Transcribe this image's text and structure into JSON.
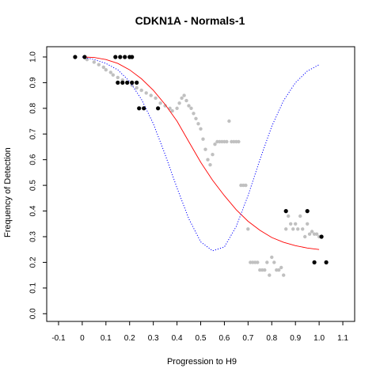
{
  "chart_data": {
    "type": "scatter",
    "title": "CDKN1A - Normals-1",
    "xlabel": "Progression to H9",
    "ylabel": "Frequency of Detection",
    "xlim": [
      -0.15,
      1.15
    ],
    "ylim": [
      -0.03,
      1.04
    ],
    "x_ticks": [
      "-0.1",
      "0",
      "0.1",
      "0.2",
      "0.3",
      "0.4",
      "0.5",
      "0.6",
      "0.7",
      "0.8",
      "0.9",
      "1.0",
      "1.1"
    ],
    "y_ticks": [
      "0.0",
      "0.1",
      "0.2",
      "0.3",
      "0.4",
      "0.5",
      "0.6",
      "0.7",
      "0.8",
      "0.9",
      "1.0"
    ],
    "grid": false,
    "series": [
      {
        "kind": "points",
        "color": "#000000",
        "points": [
          [
            -0.03,
            1.0
          ],
          [
            0.01,
            1.0
          ],
          [
            0.14,
            1.0
          ],
          [
            0.16,
            1.0
          ],
          [
            0.18,
            1.0
          ],
          [
            0.2,
            1.0
          ],
          [
            0.21,
            1.0
          ],
          [
            0.15,
            0.9
          ],
          [
            0.17,
            0.9
          ],
          [
            0.19,
            0.9
          ],
          [
            0.21,
            0.9
          ],
          [
            0.23,
            0.9
          ],
          [
            0.24,
            0.8
          ],
          [
            0.26,
            0.8
          ],
          [
            0.32,
            0.8
          ],
          [
            0.86,
            0.4
          ],
          [
            0.95,
            0.4
          ],
          [
            1.01,
            0.3
          ],
          [
            0.98,
            0.2
          ],
          [
            1.03,
            0.2
          ]
        ]
      },
      {
        "kind": "points",
        "color": "#c0c0c0",
        "points": [
          [
            0.02,
            0.99
          ],
          [
            0.05,
            0.98
          ],
          [
            0.07,
            0.97
          ],
          [
            0.09,
            0.96
          ],
          [
            0.1,
            0.95
          ],
          [
            0.12,
            0.94
          ],
          [
            0.13,
            0.93
          ],
          [
            0.15,
            0.92
          ],
          [
            0.17,
            0.91
          ],
          [
            0.19,
            0.9
          ],
          [
            0.21,
            0.89
          ],
          [
            0.23,
            0.88
          ],
          [
            0.25,
            0.87
          ],
          [
            0.27,
            0.86
          ],
          [
            0.29,
            0.85
          ],
          [
            0.31,
            0.84
          ],
          [
            0.33,
            0.82
          ],
          [
            0.35,
            0.81
          ],
          [
            0.37,
            0.8
          ],
          [
            0.38,
            0.79
          ],
          [
            0.4,
            0.8
          ],
          [
            0.41,
            0.82
          ],
          [
            0.42,
            0.84
          ],
          [
            0.43,
            0.85
          ],
          [
            0.44,
            0.83
          ],
          [
            0.45,
            0.81
          ],
          [
            0.46,
            0.8
          ],
          [
            0.47,
            0.78
          ],
          [
            0.48,
            0.76
          ],
          [
            0.49,
            0.74
          ],
          [
            0.5,
            0.72
          ],
          [
            0.51,
            0.68
          ],
          [
            0.52,
            0.64
          ],
          [
            0.53,
            0.6
          ],
          [
            0.54,
            0.58
          ],
          [
            0.55,
            0.62
          ],
          [
            0.56,
            0.66
          ],
          [
            0.57,
            0.67
          ],
          [
            0.58,
            0.67
          ],
          [
            0.59,
            0.67
          ],
          [
            0.6,
            0.67
          ],
          [
            0.61,
            0.67
          ],
          [
            0.62,
            0.75
          ],
          [
            0.63,
            0.67
          ],
          [
            0.64,
            0.67
          ],
          [
            0.65,
            0.67
          ],
          [
            0.66,
            0.67
          ],
          [
            0.67,
            0.5
          ],
          [
            0.68,
            0.5
          ],
          [
            0.69,
            0.5
          ],
          [
            0.7,
            0.33
          ],
          [
            0.71,
            0.2
          ],
          [
            0.72,
            0.2
          ],
          [
            0.73,
            0.2
          ],
          [
            0.74,
            0.2
          ],
          [
            0.75,
            0.17
          ],
          [
            0.76,
            0.17
          ],
          [
            0.77,
            0.17
          ],
          [
            0.78,
            0.2
          ],
          [
            0.79,
            0.15
          ],
          [
            0.8,
            0.22
          ],
          [
            0.81,
            0.2
          ],
          [
            0.82,
            0.17
          ],
          [
            0.83,
            0.17
          ],
          [
            0.84,
            0.18
          ],
          [
            0.85,
            0.15
          ],
          [
            0.86,
            0.33
          ],
          [
            0.87,
            0.38
          ],
          [
            0.88,
            0.35
          ],
          [
            0.89,
            0.33
          ],
          [
            0.9,
            0.35
          ],
          [
            0.91,
            0.33
          ],
          [
            0.92,
            0.38
          ],
          [
            0.93,
            0.33
          ],
          [
            0.94,
            0.3
          ],
          [
            0.95,
            0.35
          ],
          [
            0.96,
            0.31
          ],
          [
            0.97,
            0.32
          ],
          [
            0.98,
            0.31
          ],
          [
            0.99,
            0.31
          ],
          [
            1.0,
            0.3
          ]
        ]
      },
      {
        "kind": "line",
        "color": "#ff0000",
        "style": "solid",
        "points": [
          [
            0.0,
            1.0
          ],
          [
            0.05,
            0.998
          ],
          [
            0.1,
            0.99
          ],
          [
            0.15,
            0.975
          ],
          [
            0.2,
            0.95
          ],
          [
            0.25,
            0.915
          ],
          [
            0.3,
            0.87
          ],
          [
            0.35,
            0.815
          ],
          [
            0.4,
            0.75
          ],
          [
            0.45,
            0.67
          ],
          [
            0.5,
            0.59
          ],
          [
            0.55,
            0.52
          ],
          [
            0.6,
            0.46
          ],
          [
            0.65,
            0.405
          ],
          [
            0.7,
            0.36
          ],
          [
            0.75,
            0.325
          ],
          [
            0.8,
            0.297
          ],
          [
            0.85,
            0.278
          ],
          [
            0.9,
            0.265
          ],
          [
            0.95,
            0.256
          ],
          [
            1.0,
            0.25
          ]
        ]
      },
      {
        "kind": "line",
        "color": "#0000ff",
        "style": "dotted",
        "points": [
          [
            0.0,
            1.0
          ],
          [
            0.05,
            0.99
          ],
          [
            0.1,
            0.975
          ],
          [
            0.15,
            0.95
          ],
          [
            0.2,
            0.905
          ],
          [
            0.25,
            0.835
          ],
          [
            0.3,
            0.74
          ],
          [
            0.35,
            0.62
          ],
          [
            0.4,
            0.49
          ],
          [
            0.45,
            0.37
          ],
          [
            0.5,
            0.28
          ],
          [
            0.55,
            0.245
          ],
          [
            0.6,
            0.26
          ],
          [
            0.65,
            0.34
          ],
          [
            0.7,
            0.46
          ],
          [
            0.75,
            0.6
          ],
          [
            0.8,
            0.73
          ],
          [
            0.85,
            0.83
          ],
          [
            0.9,
            0.9
          ],
          [
            0.95,
            0.945
          ],
          [
            1.0,
            0.97
          ]
        ]
      }
    ]
  }
}
